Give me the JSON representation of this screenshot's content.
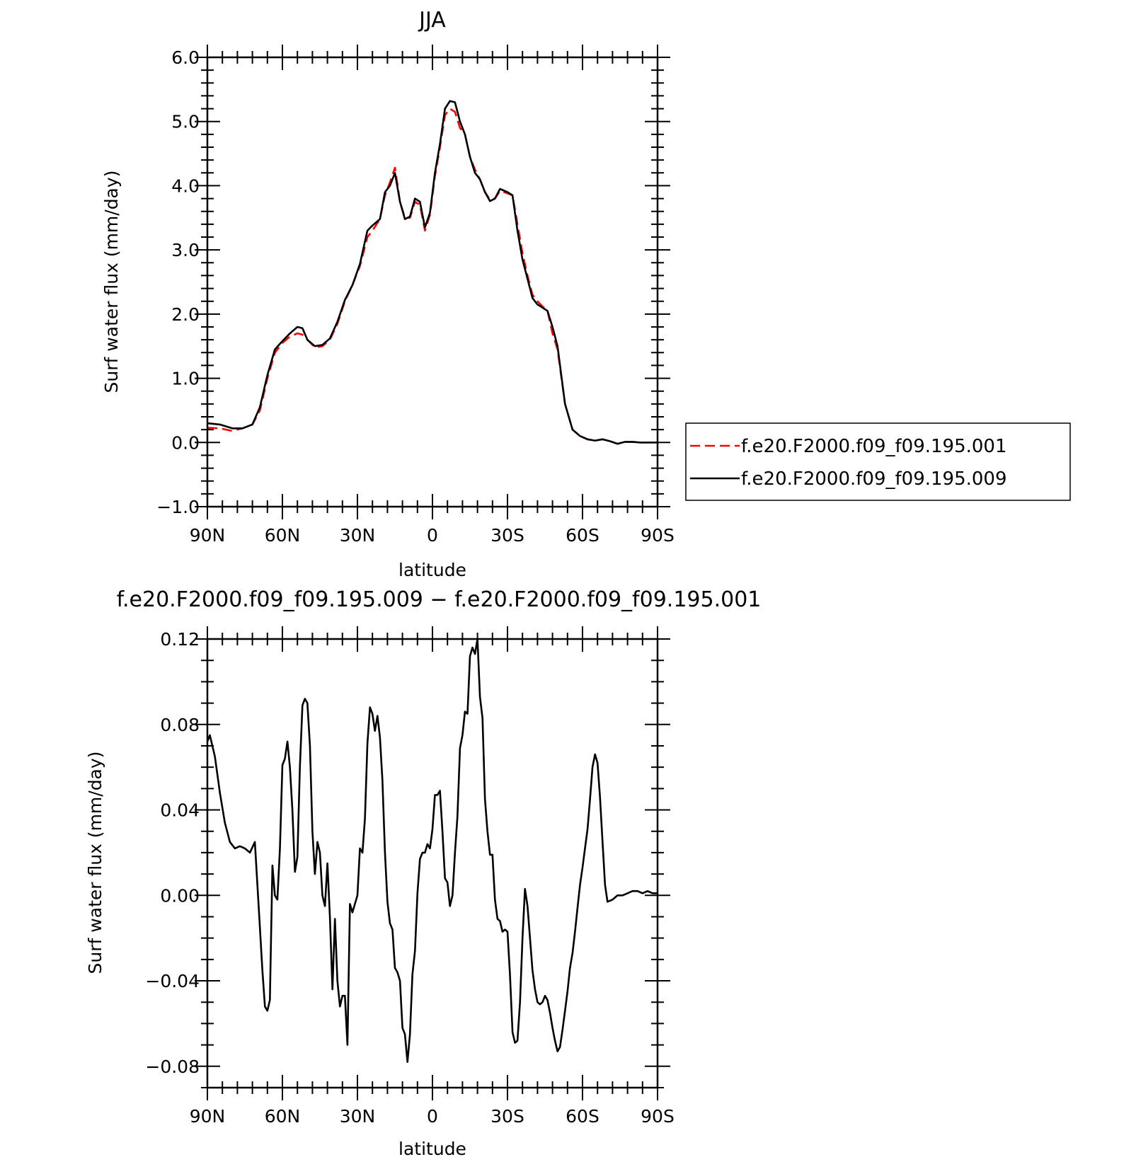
{
  "chart_data": [
    {
      "type": "line",
      "title": "JJA",
      "xlabel": "latitude",
      "ylabel": "Surf water flux (mm/day)",
      "xlim": [
        90,
        -90
      ],
      "ylim": [
        -1.0,
        6.0
      ],
      "yticks": [
        6.0,
        5.0,
        4.0,
        3.0,
        2.0,
        1.0,
        0.0,
        -1.0
      ],
      "ytick_labels": [
        "6.0",
        "5.0",
        "4.0",
        "3.0",
        "2.0",
        "1.0",
        "0.0",
        "−1.0"
      ],
      "xticks": [
        90,
        60,
        30,
        0,
        -30,
        -60,
        -90
      ],
      "xtick_labels": [
        "90N",
        "60N",
        "30N",
        "0",
        "30S",
        "60S",
        "90S"
      ],
      "legend_position": "right",
      "grid": false,
      "x": [
        90,
        85,
        80,
        76,
        72,
        69,
        66,
        63,
        60,
        57,
        54,
        52,
        50,
        47,
        44,
        41,
        38,
        35,
        32,
        29,
        26,
        24,
        21,
        19,
        17,
        15,
        13,
        11,
        9,
        7,
        5,
        3,
        1,
        -1,
        -3,
        -5,
        -7,
        -9,
        -11,
        -13,
        -15,
        -17,
        -19,
        -21,
        -23,
        -25,
        -27,
        -30,
        -32,
        -34,
        -36,
        -38,
        -40,
        -42,
        -44,
        -46,
        -48,
        -50,
        -53,
        -56,
        -59,
        -62,
        -65,
        -68,
        -71,
        -74,
        -77,
        -80,
        -83,
        -86,
        -90
      ],
      "series": [
        {
          "name": "f.e20.F2000.f09_f09.195.001",
          "color": "#ff0000",
          "dash": "dashed",
          "values": [
            0.23,
            0.22,
            0.18,
            0.22,
            0.28,
            0.5,
            1.0,
            1.4,
            1.55,
            1.65,
            1.7,
            1.68,
            1.6,
            1.48,
            1.5,
            1.6,
            1.85,
            2.2,
            2.45,
            2.75,
            3.2,
            3.3,
            3.48,
            3.85,
            4.05,
            4.28,
            3.75,
            3.5,
            3.5,
            3.75,
            3.7,
            3.3,
            3.55,
            4.15,
            4.6,
            5.1,
            5.2,
            5.15,
            4.9,
            4.8,
            4.45,
            4.25,
            4.1,
            3.9,
            3.78,
            3.8,
            3.92,
            3.88,
            3.85,
            3.4,
            2.95,
            2.6,
            2.3,
            2.2,
            2.12,
            2.05,
            1.7,
            1.45,
            0.6,
            0.2,
            0.1,
            0.05,
            0.03,
            0.05,
            0.02,
            -0.02,
            0.01,
            0.01,
            0.0,
            0.0,
            0.0
          ]
        },
        {
          "name": "f.e20.F2000.f09_f09.195.009",
          "color": "#000000",
          "dash": "solid",
          "values": [
            0.3,
            0.28,
            0.22,
            0.22,
            0.28,
            0.55,
            1.05,
            1.45,
            1.58,
            1.7,
            1.8,
            1.78,
            1.6,
            1.5,
            1.52,
            1.62,
            1.88,
            2.22,
            2.45,
            2.78,
            3.3,
            3.38,
            3.48,
            3.9,
            4.0,
            4.2,
            3.75,
            3.48,
            3.52,
            3.8,
            3.75,
            3.35,
            3.58,
            4.2,
            4.65,
            5.2,
            5.32,
            5.3,
            5.0,
            4.8,
            4.45,
            4.2,
            4.1,
            3.9,
            3.76,
            3.8,
            3.95,
            3.9,
            3.85,
            3.3,
            2.85,
            2.55,
            2.25,
            2.15,
            2.1,
            2.05,
            1.8,
            1.5,
            0.6,
            0.2,
            0.1,
            0.05,
            0.03,
            0.05,
            0.02,
            -0.02,
            0.01,
            0.01,
            0.0,
            0.0,
            0.0
          ]
        }
      ]
    },
    {
      "type": "line",
      "title": "f.e20.F2000.f09_f09.195.009 − f.e20.F2000.f09_f09.195.001",
      "xlabel": "latitude",
      "ylabel": "Surf water flux (mm/day)",
      "xlim": [
        90,
        -90
      ],
      "ylim": [
        -0.09,
        0.12
      ],
      "yticks": [
        0.12,
        0.08,
        0.04,
        0.0,
        -0.04,
        -0.08
      ],
      "ytick_labels": [
        "0.12",
        "0.08",
        "0.04",
        "0.00",
        "−0.04",
        "−0.08"
      ],
      "xticks": [
        90,
        60,
        30,
        0,
        -30,
        -60,
        -90
      ],
      "xtick_labels": [
        "90N",
        "60N",
        "30N",
        "0",
        "30S",
        "60S",
        "90S"
      ],
      "grid": false,
      "series": [
        {
          "color": "#000000",
          "x": [
            90,
            89,
            87,
            85,
            83,
            81,
            79,
            77,
            75,
            73,
            71,
            69,
            68,
            67,
            66,
            65,
            64,
            63,
            62,
            61,
            60,
            59,
            58,
            57,
            56,
            55,
            54,
            53,
            52,
            51,
            50,
            49,
            48,
            47,
            46,
            45,
            44,
            43,
            42,
            41,
            40,
            39,
            38,
            37,
            36,
            35,
            34,
            33,
            32,
            30,
            29,
            28,
            27,
            26,
            25,
            24,
            23,
            22,
            21,
            20,
            19,
            18,
            17,
            16,
            15,
            14,
            13,
            12,
            11,
            10,
            9,
            8,
            7,
            6,
            5,
            4,
            3,
            2,
            1,
            0,
            -1,
            -2,
            -3,
            -4,
            -5,
            -6,
            -7,
            -8,
            -9,
            -10,
            -11,
            -12,
            -13,
            -14,
            -15,
            -16,
            -17,
            -18,
            -19,
            -20,
            -21,
            -22,
            -23,
            -24,
            -25,
            -26,
            -27,
            -28,
            -29,
            -30,
            -31,
            -32,
            -33,
            -34,
            -35,
            -36,
            -37,
            -38,
            -39,
            -40,
            -41,
            -42,
            -43,
            -44,
            -45,
            -46,
            -47,
            -48,
            -49,
            -50,
            -51,
            -52,
            -53,
            -54,
            -55,
            -56,
            -57,
            -58,
            -59,
            -60,
            -61,
            -62,
            -63,
            -64,
            -65,
            -66,
            -67,
            -68,
            -69,
            -70,
            -72,
            -74,
            -76,
            -78,
            -80,
            -82,
            -84,
            -86,
            -88,
            -90
          ],
          "values": [
            0.072,
            0.075,
            0.065,
            0.048,
            0.034,
            0.025,
            0.022,
            0.023,
            0.022,
            0.02,
            0.025,
            -0.015,
            -0.035,
            -0.052,
            -0.054,
            -0.049,
            0.014,
            0.0,
            -0.002,
            0.022,
            0.061,
            0.064,
            0.072,
            0.06,
            0.04,
            0.011,
            0.018,
            0.06,
            0.089,
            0.092,
            0.09,
            0.07,
            0.03,
            0.01,
            0.025,
            0.02,
            0.0,
            -0.005,
            0.015,
            -0.01,
            -0.044,
            -0.011,
            -0.04,
            -0.052,
            -0.047,
            -0.047,
            -0.07,
            -0.004,
            -0.008,
            0.0,
            0.022,
            0.02,
            0.036,
            0.071,
            0.088,
            0.085,
            0.077,
            0.084,
            0.074,
            0.054,
            0.02,
            -0.003,
            -0.013,
            -0.016,
            -0.034,
            -0.036,
            -0.04,
            -0.062,
            -0.065,
            -0.078,
            -0.065,
            -0.037,
            -0.026,
            0.001,
            0.017,
            0.02,
            0.02,
            0.024,
            0.022,
            0.031,
            0.047,
            0.047,
            0.049,
            0.03,
            0.008,
            0.006,
            -0.005,
            0.0,
            0.02,
            0.037,
            0.069,
            0.075,
            0.086,
            0.085,
            0.112,
            0.116,
            0.113,
            0.12,
            0.093,
            0.083,
            0.045,
            0.03,
            0.019,
            0.019,
            -0.002,
            -0.011,
            -0.012,
            -0.017,
            -0.016,
            -0.017,
            -0.037,
            -0.064,
            -0.069,
            -0.068,
            -0.05,
            -0.02,
            0.003,
            -0.005,
            -0.02,
            -0.035,
            -0.044,
            -0.05,
            -0.051,
            -0.05,
            -0.047,
            -0.049,
            -0.055,
            -0.062,
            -0.068,
            -0.073,
            -0.071,
            -0.063,
            -0.054,
            -0.045,
            -0.034,
            -0.027,
            -0.017,
            -0.006,
            0.005,
            0.013,
            0.022,
            0.031,
            0.045,
            0.06,
            0.066,
            0.062,
            0.046,
            0.025,
            0.005,
            -0.003,
            -0.002,
            0.0,
            0.0,
            0.001,
            0.002,
            0.002,
            0.001,
            0.002,
            0.001,
            0.001
          ]
        }
      ]
    }
  ]
}
